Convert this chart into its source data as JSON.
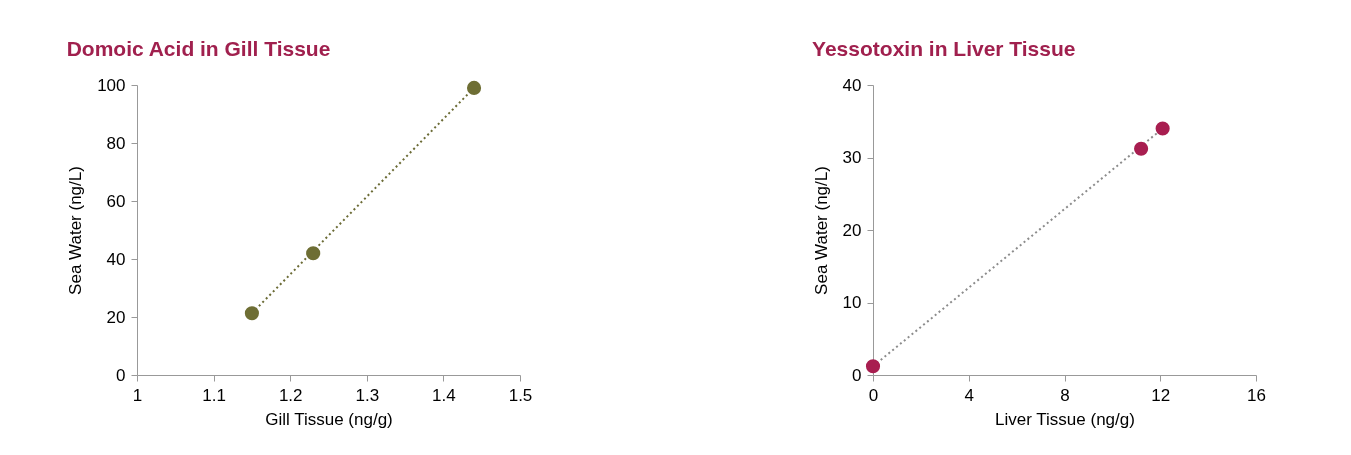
{
  "chart_data": [
    {
      "type": "scatter",
      "title": "Domoic Acid in Gill Tissue",
      "xlabel": "Gill Tissue (ng/g)",
      "ylabel": "Sea Water (ng/L)",
      "xlim": [
        1,
        1.5
      ],
      "xticks": [
        1,
        1.1,
        1.2,
        1.3,
        1.4,
        1.5
      ],
      "ylim": [
        0,
        100
      ],
      "yticks": [
        0,
        20,
        40,
        60,
        80,
        100
      ],
      "grid": false,
      "marker": "circle",
      "series": [
        {
          "type": "line",
          "line_style": "dotted",
          "marker": "none",
          "color": "#6b6b35",
          "x": [
            1.15,
            1.44
          ],
          "values": [
            21.3,
            99
          ]
        },
        {
          "color": "#6e6e34",
          "x": [
            1.15,
            1.23,
            1.44
          ],
          "values": [
            21.3,
            42,
            99
          ]
        }
      ]
    },
    {
      "type": "scatter",
      "title": "Yessotoxin in Liver Tissue",
      "xlabel": "Liver Tissue (ng/g)",
      "ylabel": "Sea Water (ng/L)",
      "xlim": [
        0,
        16
      ],
      "xticks": [
        0,
        4,
        8,
        12,
        16
      ],
      "ylim": [
        0,
        40
      ],
      "yticks": [
        0,
        10,
        20,
        30,
        40
      ],
      "grid": false,
      "marker": "circle",
      "series": [
        {
          "type": "line",
          "line_style": "dotted",
          "marker": "none",
          "color": "#8c8c8c",
          "x": [
            0,
            12.1
          ],
          "values": [
            1.2,
            34
          ]
        },
        {
          "color": "#a81e50",
          "x": [
            0,
            11.2,
            12.1
          ],
          "values": [
            1.2,
            31.2,
            34
          ]
        }
      ]
    }
  ]
}
